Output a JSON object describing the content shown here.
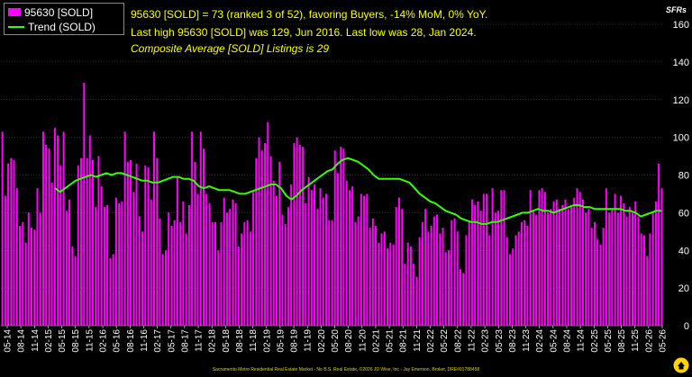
{
  "legend": {
    "bars_label": "95630 [SOLD]",
    "trend_label": "Trend (SOLD)"
  },
  "info": {
    "line1": "95630 [SOLD] = 73 (ranked 3 of 52), favoring Buyers, -14% MoM, 0% YoY.",
    "line2": "Last high 95630 [SOLD] was 129, Jun 2016. Last low was 28, Jan 2024.",
    "line3": "Composite Average [SOLD] Listings is 29"
  },
  "unit_label": "SFRs",
  "footer": "Sacramento Metro Residential Real Estate Market - No B.S. Real Estate, ©2026 JD Wise, Inc - Jay Emerson, Broker, DRE#01788458",
  "colors": {
    "bar": "#ff00ff",
    "trend": "#33ff00",
    "info_text": "#ffff00",
    "axis_text": "#ffffff",
    "grid": "#555555",
    "logo": "#ffd400"
  },
  "chart_data": {
    "type": "bar",
    "ylim": [
      0,
      160
    ],
    "y_ticks": [
      0,
      20,
      40,
      60,
      80,
      100,
      120,
      140,
      160
    ],
    "y_axis_side": "right",
    "grid": true,
    "legend_position": "top-left",
    "x_tick_labels": [
      "05-14",
      "08-14",
      "11-14",
      "02-15",
      "05-15",
      "08-15",
      "11-15",
      "02-16",
      "05-16",
      "08-16",
      "11-16",
      "02-17",
      "05-17",
      "08-17",
      "11-17",
      "02-18",
      "05-18",
      "08-18",
      "11-18",
      "02-19",
      "05-19",
      "08-19",
      "11-19",
      "02-20",
      "05-20",
      "08-20",
      "11-20",
      "02-21",
      "05-21",
      "08-21",
      "11-21",
      "02-22",
      "05-22",
      "08-22",
      "11-22",
      "02-23",
      "05-23",
      "08-23",
      "11-23",
      "02-24",
      "05-24",
      "08-24",
      "11-24",
      "02-25",
      "05-25",
      "08-25",
      "11-25",
      "02-26",
      "05-26"
    ],
    "series": [
      {
        "name": "95630 [SOLD]",
        "kind": "bar",
        "values": [
          103,
          69,
          86,
          89,
          88,
          73,
          53,
          55,
          44,
          60,
          52,
          51,
          73,
          60,
          103,
          96,
          94,
          76,
          105,
          101,
          85,
          103,
          61,
          67,
          42,
          37,
          85,
          89,
          129,
          89,
          101,
          88,
          63,
          90,
          74,
          63,
          64,
          36,
          38,
          68,
          65,
          66,
          103,
          87,
          88,
          71,
          86,
          58,
          50,
          85,
          84,
          67,
          103,
          89,
          57,
          38,
          40,
          60,
          53,
          56,
          79,
          55,
          66,
          49,
          64,
          103,
          87,
          70,
          103,
          94,
          70,
          65,
          55,
          55,
          40,
          55,
          68,
          60,
          62,
          67,
          65,
          42,
          49,
          55,
          56,
          50,
          71,
          89,
          100,
          93,
          97,
          108,
          90,
          77,
          69,
          87,
          59,
          54,
          63,
          75,
          97,
          100,
          96,
          95,
          65,
          79,
          72,
          75,
          62,
          73,
          68,
          70,
          56,
          56,
          93,
          81,
          95,
          94,
          77,
          72,
          74,
          55,
          58,
          70,
          69,
          70,
          52,
          57,
          53,
          44,
          49,
          50,
          41,
          44,
          43,
          63,
          68,
          62,
          33,
          44,
          42,
          33,
          26,
          47,
          55,
          62,
          50,
          53,
          58,
          59,
          49,
          52,
          39,
          40,
          56,
          57,
          50,
          30,
          28,
          48,
          55,
          67,
          64,
          66,
          61,
          70,
          70,
          48,
          73,
          60,
          61,
          72,
          72,
          47,
          38,
          41,
          48,
          50,
          55,
          56,
          53,
          72,
          61,
          59,
          72,
          73,
          71,
          60,
          62,
          66,
          67,
          62,
          64,
          67,
          62,
          64,
          68,
          73,
          71,
          67,
          60,
          62,
          52,
          55,
          46,
          43,
          52,
          73,
          60,
          62,
          70,
          60,
          69,
          65,
          58,
          63,
          60,
          66,
          58,
          49,
          48,
          37,
          49,
          60,
          66,
          86,
          73
        ]
      },
      {
        "name": "Trend (SOLD)",
        "kind": "line",
        "values": [
          73,
          71,
          73,
          75,
          77,
          78,
          79,
          80,
          79,
          80,
          81,
          80,
          81,
          81,
          80,
          79,
          78,
          77,
          77,
          76,
          76,
          77,
          78,
          79,
          79,
          78,
          78,
          77,
          74,
          73,
          74,
          73,
          72,
          72,
          72,
          71,
          70,
          70,
          71,
          72,
          73,
          74,
          75,
          75,
          73,
          69,
          67,
          69,
          72,
          74,
          76,
          78,
          80,
          82,
          83,
          86,
          88,
          89,
          88,
          87,
          85,
          83,
          80,
          78,
          78,
          78,
          78,
          78,
          77,
          76,
          73,
          70,
          68,
          66,
          65,
          63,
          61,
          60,
          59,
          57,
          56,
          55,
          55,
          54,
          54,
          55,
          55,
          56,
          57,
          58,
          59,
          60,
          60,
          61,
          62,
          61,
          61,
          60,
          61,
          62,
          63,
          64,
          64,
          63,
          63,
          62,
          62,
          62,
          62,
          62,
          62,
          61,
          61,
          60,
          58,
          59,
          60,
          61,
          61
        ]
      }
    ]
  }
}
